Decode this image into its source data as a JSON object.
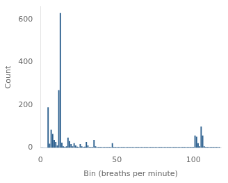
{
  "chart_data": {
    "type": "bar",
    "xlabel": "Bin (breaths per minute)",
    "ylabel": "Count",
    "x": [
      1,
      2,
      3,
      4,
      5,
      6,
      7,
      8,
      9,
      10,
      11,
      12,
      13,
      14,
      15,
      16,
      17,
      18,
      19,
      20,
      21,
      22,
      23,
      24,
      25,
      26,
      27,
      28,
      29,
      30,
      31,
      32,
      33,
      34,
      35,
      36,
      37,
      38,
      39,
      40,
      41,
      42,
      43,
      44,
      45,
      46,
      47,
      48,
      49,
      50,
      51,
      52,
      53,
      54,
      55,
      56,
      57,
      58,
      59,
      60,
      61,
      62,
      63,
      64,
      65,
      66,
      67,
      68,
      69,
      70,
      71,
      72,
      73,
      74,
      75,
      76,
      77,
      78,
      79,
      80,
      81,
      82,
      83,
      84,
      85,
      86,
      87,
      88,
      89,
      90,
      91,
      92,
      93,
      94,
      95,
      96,
      97,
      98,
      99,
      100,
      101,
      102,
      103,
      104,
      105,
      106,
      107,
      108,
      109,
      110,
      111,
      112,
      113,
      114,
      115,
      116,
      117
    ],
    "values": [
      3,
      2,
      2,
      2,
      190,
      20,
      85,
      65,
      38,
      28,
      12,
      270,
      630,
      25,
      8,
      5,
      8,
      48,
      32,
      18,
      8,
      22,
      12,
      6,
      4,
      18,
      8,
      4,
      6,
      28,
      12,
      4,
      4,
      4,
      38,
      8,
      4,
      4,
      4,
      4,
      4,
      4,
      4,
      4,
      4,
      4,
      22,
      4,
      4,
      4,
      4,
      4,
      4,
      4,
      4,
      4,
      4,
      4,
      4,
      4,
      4,
      4,
      4,
      4,
      4,
      4,
      4,
      4,
      4,
      4,
      4,
      4,
      4,
      4,
      4,
      4,
      4,
      4,
      4,
      4,
      4,
      4,
      4,
      4,
      4,
      4,
      4,
      4,
      4,
      4,
      4,
      4,
      4,
      4,
      4,
      4,
      4,
      4,
      4,
      4,
      58,
      52,
      22,
      8,
      100,
      58,
      8,
      4,
      4,
      4,
      4,
      4,
      4,
      4,
      4,
      4,
      4
    ],
    "color": "#2b5f8e",
    "xlim": [
      0,
      118
    ],
    "ylim": [
      0,
      660
    ],
    "xticks": [
      0,
      50,
      100
    ],
    "yticks": [
      0,
      200,
      400,
      600
    ],
    "grid": false
  }
}
